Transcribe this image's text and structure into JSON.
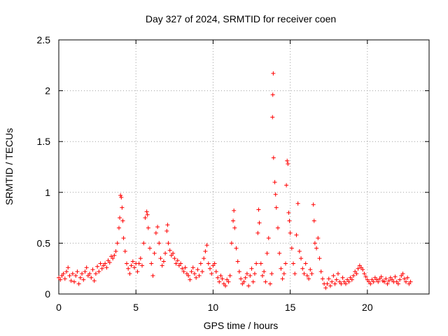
{
  "chart_data": {
    "type": "scatter",
    "title": "Day 327 of 2024, SRMTID for receiver coen",
    "xlabel": "GPS time / hours",
    "ylabel": "SRMTID / TECUs",
    "xlim": [
      0,
      24
    ],
    "ylim": [
      0,
      2.5
    ],
    "xticks": [
      0,
      5,
      10,
      15,
      20
    ],
    "yticks": [
      0,
      0.5,
      1,
      1.5,
      2,
      2.5
    ],
    "xtick_labels": [
      "0",
      "5",
      "10",
      "15",
      "20"
    ],
    "ytick_labels": [
      "0",
      "0.5",
      "1",
      "1.5",
      "2",
      "2.5"
    ],
    "grid": true,
    "marker": "plus",
    "series": [
      {
        "name": "SRMTID",
        "color": "#ff0000",
        "points": [
          [
            0.0,
            0.16
          ],
          [
            0.1,
            0.14
          ],
          [
            0.2,
            0.18
          ],
          [
            0.3,
            0.2
          ],
          [
            0.4,
            0.15
          ],
          [
            0.5,
            0.22
          ],
          [
            0.6,
            0.26
          ],
          [
            0.7,
            0.18
          ],
          [
            0.8,
            0.13
          ],
          [
            0.9,
            0.2
          ],
          [
            1.0,
            0.12
          ],
          [
            1.1,
            0.18
          ],
          [
            1.2,
            0.22
          ],
          [
            1.3,
            0.1
          ],
          [
            1.4,
            0.16
          ],
          [
            1.5,
            0.2
          ],
          [
            1.6,
            0.14
          ],
          [
            1.7,
            0.22
          ],
          [
            1.8,
            0.26
          ],
          [
            1.9,
            0.18
          ],
          [
            2.0,
            0.2
          ],
          [
            2.1,
            0.16
          ],
          [
            2.2,
            0.24
          ],
          [
            2.3,
            0.13
          ],
          [
            2.4,
            0.2
          ],
          [
            2.5,
            0.27
          ],
          [
            2.6,
            0.22
          ],
          [
            2.7,
            0.3
          ],
          [
            2.8,
            0.25
          ],
          [
            2.9,
            0.28
          ],
          [
            3.0,
            0.3
          ],
          [
            3.1,
            0.26
          ],
          [
            3.2,
            0.33
          ],
          [
            3.3,
            0.31
          ],
          [
            3.4,
            0.37
          ],
          [
            3.5,
            0.35
          ],
          [
            3.6,
            0.38
          ],
          [
            3.7,
            0.42
          ],
          [
            3.8,
            0.5
          ],
          [
            3.9,
            0.65
          ],
          [
            3.95,
            0.75
          ],
          [
            4.0,
            0.97
          ],
          [
            4.05,
            0.95
          ],
          [
            4.1,
            0.85
          ],
          [
            4.15,
            0.72
          ],
          [
            4.2,
            0.55
          ],
          [
            4.3,
            0.42
          ],
          [
            4.4,
            0.3
          ],
          [
            4.5,
            0.25
          ],
          [
            4.6,
            0.2
          ],
          [
            4.7,
            0.28
          ],
          [
            4.8,
            0.32
          ],
          [
            4.9,
            0.26
          ],
          [
            5.0,
            0.3
          ],
          [
            5.1,
            0.22
          ],
          [
            5.2,
            0.3
          ],
          [
            5.3,
            0.35
          ],
          [
            5.4,
            0.28
          ],
          [
            5.5,
            0.5
          ],
          [
            5.6,
            0.75
          ],
          [
            5.7,
            0.81
          ],
          [
            5.75,
            0.78
          ],
          [
            5.8,
            0.65
          ],
          [
            5.9,
            0.45
          ],
          [
            6.0,
            0.3
          ],
          [
            6.1,
            0.18
          ],
          [
            6.2,
            0.4
          ],
          [
            6.3,
            0.6
          ],
          [
            6.4,
            0.66
          ],
          [
            6.5,
            0.5
          ],
          [
            6.6,
            0.35
          ],
          [
            6.7,
            0.28
          ],
          [
            6.8,
            0.32
          ],
          [
            6.9,
            0.4
          ],
          [
            7.0,
            0.62
          ],
          [
            7.05,
            0.68
          ],
          [
            7.1,
            0.5
          ],
          [
            7.2,
            0.43
          ],
          [
            7.3,
            0.38
          ],
          [
            7.4,
            0.4
          ],
          [
            7.5,
            0.35
          ],
          [
            7.6,
            0.3
          ],
          [
            7.7,
            0.33
          ],
          [
            7.8,
            0.28
          ],
          [
            7.9,
            0.3
          ],
          [
            8.0,
            0.25
          ],
          [
            8.1,
            0.22
          ],
          [
            8.2,
            0.26
          ],
          [
            8.3,
            0.2
          ],
          [
            8.4,
            0.18
          ],
          [
            8.5,
            0.14
          ],
          [
            8.6,
            0.22
          ],
          [
            8.7,
            0.26
          ],
          [
            8.8,
            0.2
          ],
          [
            8.9,
            0.16
          ],
          [
            9.0,
            0.24
          ],
          [
            9.1,
            0.18
          ],
          [
            9.2,
            0.3
          ],
          [
            9.3,
            0.22
          ],
          [
            9.4,
            0.35
          ],
          [
            9.5,
            0.42
          ],
          [
            9.6,
            0.48
          ],
          [
            9.7,
            0.3
          ],
          [
            9.8,
            0.25
          ],
          [
            9.9,
            0.2
          ],
          [
            10.0,
            0.28
          ],
          [
            10.1,
            0.3
          ],
          [
            10.2,
            0.22
          ],
          [
            10.3,
            0.16
          ],
          [
            10.4,
            0.12
          ],
          [
            10.5,
            0.18
          ],
          [
            10.6,
            0.15
          ],
          [
            10.7,
            0.1
          ],
          [
            10.8,
            0.08
          ],
          [
            10.9,
            0.14
          ],
          [
            11.0,
            0.12
          ],
          [
            11.1,
            0.18
          ],
          [
            11.2,
            0.5
          ],
          [
            11.3,
            0.72
          ],
          [
            11.35,
            0.82
          ],
          [
            11.4,
            0.65
          ],
          [
            11.5,
            0.45
          ],
          [
            11.6,
            0.32
          ],
          [
            11.7,
            0.22
          ],
          [
            11.8,
            0.15
          ],
          [
            11.9,
            0.1
          ],
          [
            12.0,
            0.12
          ],
          [
            12.1,
            0.16
          ],
          [
            12.2,
            0.2
          ],
          [
            12.3,
            0.08
          ],
          [
            12.4,
            0.18
          ],
          [
            12.5,
            0.25
          ],
          [
            12.6,
            0.12
          ],
          [
            12.7,
            0.2
          ],
          [
            12.8,
            0.3
          ],
          [
            12.9,
            0.6
          ],
          [
            12.95,
            0.83
          ],
          [
            13.0,
            0.7
          ],
          [
            13.1,
            0.3
          ],
          [
            13.2,
            0.18
          ],
          [
            13.3,
            0.22
          ],
          [
            13.4,
            0.12
          ],
          [
            13.5,
            0.4
          ],
          [
            13.6,
            0.55
          ],
          [
            13.7,
            0.1
          ],
          [
            13.8,
            0.2
          ],
          [
            13.85,
            1.74
          ],
          [
            13.87,
            1.96
          ],
          [
            13.9,
            2.17
          ],
          [
            13.92,
            1.34
          ],
          [
            14.0,
            1.1
          ],
          [
            14.05,
            0.98
          ],
          [
            14.1,
            0.85
          ],
          [
            14.2,
            0.65
          ],
          [
            14.3,
            0.4
          ],
          [
            14.4,
            0.25
          ],
          [
            14.5,
            0.15
          ],
          [
            14.6,
            0.2
          ],
          [
            14.7,
            0.3
          ],
          [
            14.75,
            1.07
          ],
          [
            14.8,
            1.31
          ],
          [
            14.85,
            1.28
          ],
          [
            14.9,
            0.8
          ],
          [
            14.95,
            0.72
          ],
          [
            15.0,
            0.6
          ],
          [
            15.1,
            0.45
          ],
          [
            15.2,
            0.3
          ],
          [
            15.3,
            0.2
          ],
          [
            15.4,
            0.58
          ],
          [
            15.5,
            0.89
          ],
          [
            15.6,
            0.42
          ],
          [
            15.7,
            0.35
          ],
          [
            15.8,
            0.25
          ],
          [
            15.9,
            0.2
          ],
          [
            16.0,
            0.3
          ],
          [
            16.1,
            0.18
          ],
          [
            16.2,
            0.15
          ],
          [
            16.3,
            0.24
          ],
          [
            16.4,
            0.2
          ],
          [
            16.5,
            0.88
          ],
          [
            16.55,
            0.72
          ],
          [
            16.6,
            0.5
          ],
          [
            16.7,
            0.45
          ],
          [
            16.8,
            0.55
          ],
          [
            16.9,
            0.35
          ],
          [
            17.0,
            0.22
          ],
          [
            17.1,
            0.15
          ],
          [
            17.2,
            0.1
          ],
          [
            17.3,
            0.06
          ],
          [
            17.4,
            0.1
          ],
          [
            17.5,
            0.15
          ],
          [
            17.6,
            0.08
          ],
          [
            17.7,
            0.12
          ],
          [
            17.8,
            0.18
          ],
          [
            17.9,
            0.1
          ],
          [
            18.0,
            0.14
          ],
          [
            18.1,
            0.2
          ],
          [
            18.2,
            0.12
          ],
          [
            18.3,
            0.1
          ],
          [
            18.4,
            0.16
          ],
          [
            18.5,
            0.12
          ],
          [
            18.6,
            0.1
          ],
          [
            18.7,
            0.14
          ],
          [
            18.8,
            0.12
          ],
          [
            18.9,
            0.16
          ],
          [
            19.0,
            0.14
          ],
          [
            19.1,
            0.18
          ],
          [
            19.2,
            0.22
          ],
          [
            19.3,
            0.2
          ],
          [
            19.4,
            0.25
          ],
          [
            19.5,
            0.28
          ],
          [
            19.6,
            0.26
          ],
          [
            19.7,
            0.24
          ],
          [
            19.8,
            0.2
          ],
          [
            19.9,
            0.17
          ],
          [
            20.0,
            0.14
          ],
          [
            20.1,
            0.12
          ],
          [
            20.2,
            0.1
          ],
          [
            20.3,
            0.14
          ],
          [
            20.4,
            0.12
          ],
          [
            20.5,
            0.16
          ],
          [
            20.6,
            0.14
          ],
          [
            20.7,
            0.12
          ],
          [
            20.8,
            0.15
          ],
          [
            20.9,
            0.17
          ],
          [
            21.0,
            0.13
          ],
          [
            21.1,
            0.12
          ],
          [
            21.2,
            0.15
          ],
          [
            21.3,
            0.1
          ],
          [
            21.4,
            0.13
          ],
          [
            21.5,
            0.16
          ],
          [
            21.6,
            0.14
          ],
          [
            21.7,
            0.12
          ],
          [
            21.8,
            0.17
          ],
          [
            21.9,
            0.12
          ],
          [
            22.0,
            0.1
          ],
          [
            22.1,
            0.14
          ],
          [
            22.2,
            0.18
          ],
          [
            22.3,
            0.2
          ],
          [
            22.4,
            0.15
          ],
          [
            22.5,
            0.12
          ],
          [
            22.6,
            0.16
          ],
          [
            22.7,
            0.1
          ],
          [
            22.8,
            0.12
          ]
        ]
      }
    ]
  }
}
